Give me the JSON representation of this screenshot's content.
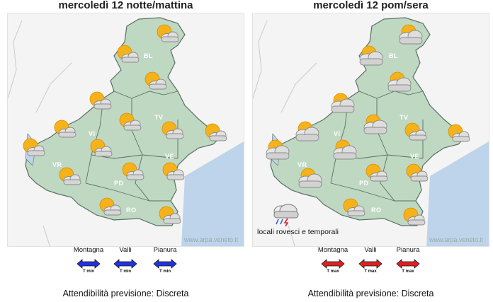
{
  "panels": [
    {
      "title": "mercoledì 12 notte/mattina",
      "watermark": "www.arpa.veneto.it",
      "provinces": [
        "BL",
        "TV",
        "VI",
        "VE",
        "VR",
        "PD",
        "RO"
      ],
      "symbols": [
        "sun-cloud",
        "sun-cloud",
        "sun-cloud",
        "sun-cloud",
        "sun-cloud",
        "sun-cloud",
        "sun-cloud",
        "sun-cloud",
        "sun-cloud",
        "sun-cloud",
        "sun-cloud",
        "sun-cloud",
        "sun-cloud",
        "sun-cloud",
        "sun-cloud"
      ],
      "note": "",
      "legend": {
        "labels": [
          "Montagna",
          "Valli",
          "Pianura"
        ],
        "sub": "T min",
        "arrow_color": "#2233dd"
      },
      "reliability": "Attendibilità previsione: Discreta"
    },
    {
      "title": "mercoledì 12 pom/sera",
      "watermark": "www.arpa.veneto.it",
      "provinces": [
        "BL",
        "TV",
        "VI",
        "VE",
        "VR",
        "PD",
        "RO"
      ],
      "symbols": [
        "sun-cloud",
        "sun-cloud",
        "sun-cloud",
        "sun-cloud",
        "sun-cloud",
        "sun-cloud",
        "sun-cloud",
        "sun-cloud",
        "sun-cloud",
        "sun-cloud",
        "sun-cloud",
        "sun-cloud",
        "sun-cloud",
        "sun-cloud",
        "sun-cloud"
      ],
      "note": "locali rovesci e temporali",
      "legend": {
        "labels": [
          "Montagna",
          "Valli",
          "Pianura"
        ],
        "sub": "T max",
        "arrow_color": "#dd2222"
      },
      "reliability": "Attendibilità previsione: Discreta"
    }
  ],
  "colors": {
    "region": "#bfd8c2",
    "border": "#5a6f63",
    "sea": "#bdd4ea",
    "sun": "#f6b21a",
    "cloud": "#d9d9d9"
  }
}
